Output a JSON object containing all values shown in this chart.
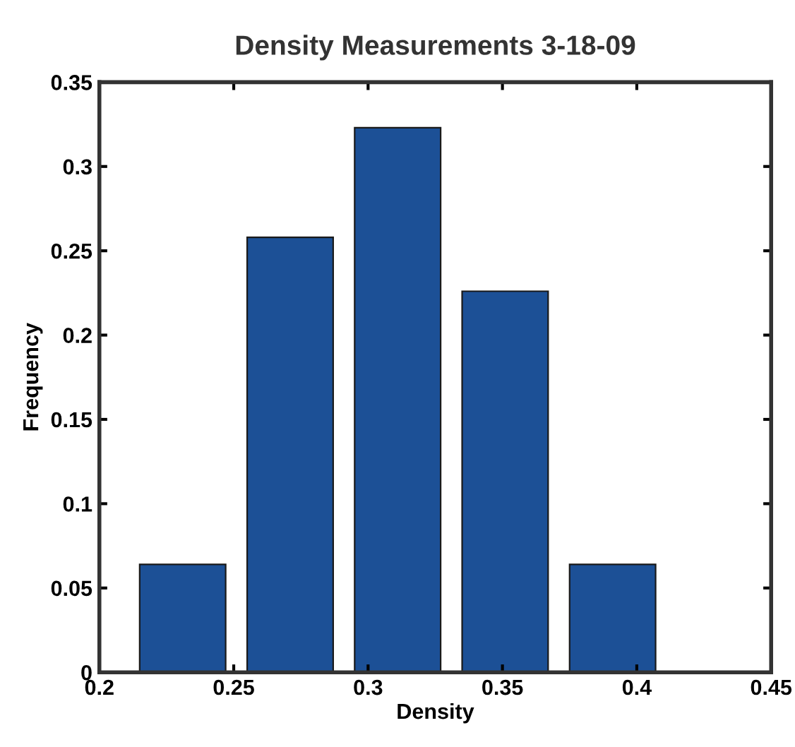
{
  "chart_data": {
    "type": "bar",
    "title": "Density Measurements 3-18-09",
    "xlabel": "Density",
    "ylabel": "Frequency",
    "x": [
      0.231,
      0.271,
      0.311,
      0.351,
      0.391
    ],
    "series": [
      {
        "color": "#1c5096",
        "values": [
          0.064,
          0.258,
          0.323,
          0.226,
          0.064
        ]
      }
    ],
    "xlim": [
      0.2,
      0.45
    ],
    "xticks": [
      0.2,
      0.25,
      0.3,
      0.35,
      0.4,
      0.45
    ],
    "ylim": [
      0,
      0.35
    ],
    "yticks": [
      0,
      0.05,
      0.1,
      0.15,
      0.2,
      0.25,
      0.3,
      0.35
    ],
    "grid": false,
    "legend": false
  }
}
